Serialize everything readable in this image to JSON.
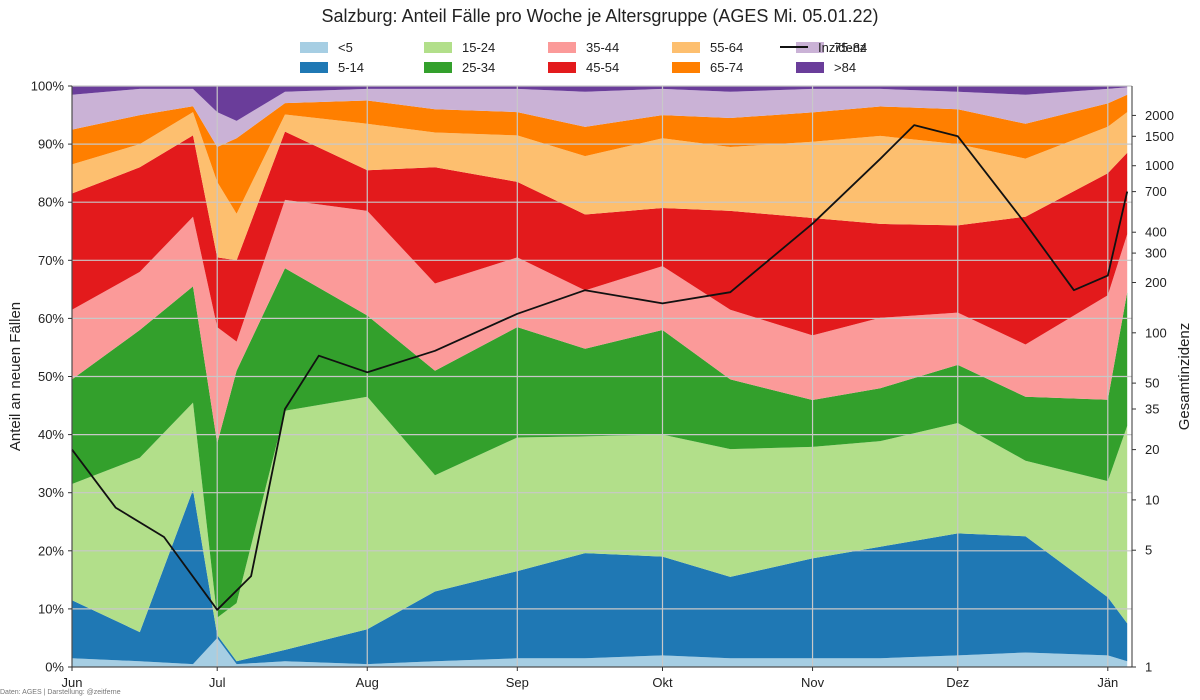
{
  "chart_data": {
    "type": "area",
    "title": "Salzburg: Anteil Fälle pro Woche je Altersgruppe (AGES Mi. 05.01.22)",
    "ylabel": "Anteil an neuen Fällen",
    "y2label": "Gesamtinzidenz",
    "stacked": true,
    "normalized": true,
    "ylim": [
      0,
      100
    ],
    "y_ticks": [
      "0%",
      "10%",
      "20%",
      "30%",
      "40%",
      "50%",
      "60%",
      "70%",
      "80%",
      "90%",
      "100%"
    ],
    "y2_scale": "log",
    "y2lim": [
      1,
      3000
    ],
    "y2_ticks": [
      1,
      5,
      10,
      20,
      35,
      50,
      100,
      200,
      300,
      400,
      700,
      1000,
      1500,
      2000
    ],
    "x_ticks": [
      "Jun",
      "Jul",
      "Aug",
      "Sep",
      "Okt",
      "Nov",
      "Dez",
      "Jän"
    ],
    "x": [
      "2021-06-01",
      "2021-06-15",
      "2021-06-26",
      "2021-07-01",
      "2021-07-05",
      "2021-07-15",
      "2021-08-01",
      "2021-08-15",
      "2021-09-01",
      "2021-09-15",
      "2021-10-01",
      "2021-10-15",
      "2021-11-01",
      "2021-11-15",
      "2021-12-01",
      "2021-12-15",
      "2022-01-01",
      "2022-01-05"
    ],
    "series": [
      {
        "name": "<5",
        "color": "#a6cee3",
        "values": [
          1.5,
          1.0,
          0.5,
          5.0,
          0.5,
          1.0,
          0.5,
          1.0,
          1.5,
          1.5,
          2.0,
          1.5,
          1.5,
          1.5,
          2.0,
          2.5,
          2.0,
          1.0
        ]
      },
      {
        "name": "5-14",
        "color": "#1f78b4",
        "values": [
          10,
          5,
          30,
          0.5,
          0.5,
          2,
          6,
          12,
          15,
          18,
          17,
          14,
          17,
          19,
          21,
          20,
          10,
          6.5
        ]
      },
      {
        "name": "15-24",
        "color": "#b2df8a",
        "values": [
          20,
          30,
          15,
          3,
          10,
          42,
          40,
          20,
          23,
          20,
          21,
          22,
          19,
          18,
          19,
          13,
          20,
          34
        ]
      },
      {
        "name": "25-34",
        "color": "#33a02c",
        "values": [
          18,
          22,
          20,
          30,
          40,
          25,
          14,
          18,
          19,
          15,
          18,
          12,
          8,
          9,
          10,
          11,
          14,
          23
        ]
      },
      {
        "name": "35-44",
        "color": "#fb9a99",
        "values": [
          12,
          10,
          12,
          20,
          5,
          12,
          18,
          15,
          12,
          10,
          11,
          12,
          11,
          12,
          9,
          9,
          18,
          10
        ]
      },
      {
        "name": "45-54",
        "color": "#e31a1c",
        "values": [
          20,
          18,
          14,
          12,
          14,
          12,
          7,
          20,
          13,
          13,
          10,
          17,
          20,
          16,
          15,
          22,
          21,
          14
        ]
      },
      {
        "name": "55-64",
        "color": "#fdbf6f",
        "values": [
          5,
          4,
          4,
          13,
          8,
          3,
          8,
          6,
          8,
          10,
          12,
          11,
          13,
          15,
          14,
          10,
          8,
          7
        ]
      },
      {
        "name": "65-74",
        "color": "#ff7f00",
        "values": [
          6,
          5,
          1,
          6,
          13,
          2,
          4,
          4,
          4,
          5,
          4,
          5,
          5,
          5,
          6,
          6,
          4,
          3
        ]
      },
      {
        "name": "75-84",
        "color": "#cab2d6",
        "values": [
          6,
          4.5,
          3,
          6,
          3,
          2,
          2,
          3.5,
          4,
          6,
          4.5,
          4.5,
          4,
          3,
          3,
          5,
          2.5,
          1.3
        ]
      },
      {
        "name": ">84",
        "color": "#6a3d9a",
        "values": [
          1.5,
          0.5,
          0.5,
          4.5,
          6,
          1,
          0.5,
          0.5,
          0.5,
          1,
          0.5,
          1,
          0.5,
          0.5,
          1,
          1.5,
          0.5,
          0.2
        ]
      }
    ],
    "line": {
      "name": "Inzidenz",
      "color": "#111111",
      "x": [
        "2021-06-01",
        "2021-06-10",
        "2021-06-20",
        "2021-07-01",
        "2021-07-08",
        "2021-07-15",
        "2021-07-22",
        "2021-08-01",
        "2021-08-15",
        "2021-09-01",
        "2021-09-15",
        "2021-10-01",
        "2021-10-15",
        "2021-11-01",
        "2021-11-15",
        "2021-11-22",
        "2021-12-01",
        "2021-12-15",
        "2021-12-25",
        "2022-01-01",
        "2022-01-05"
      ],
      "values": [
        20,
        9,
        6,
        2.2,
        3.5,
        35,
        73,
        58,
        78,
        130,
        180,
        150,
        175,
        450,
        1100,
        1750,
        1500,
        450,
        180,
        220,
        700
      ]
    },
    "legend_position": "top-center",
    "grid": true
  },
  "footer": {
    "credit": "Daten: AGES | Darstellung: @zeitferne"
  }
}
